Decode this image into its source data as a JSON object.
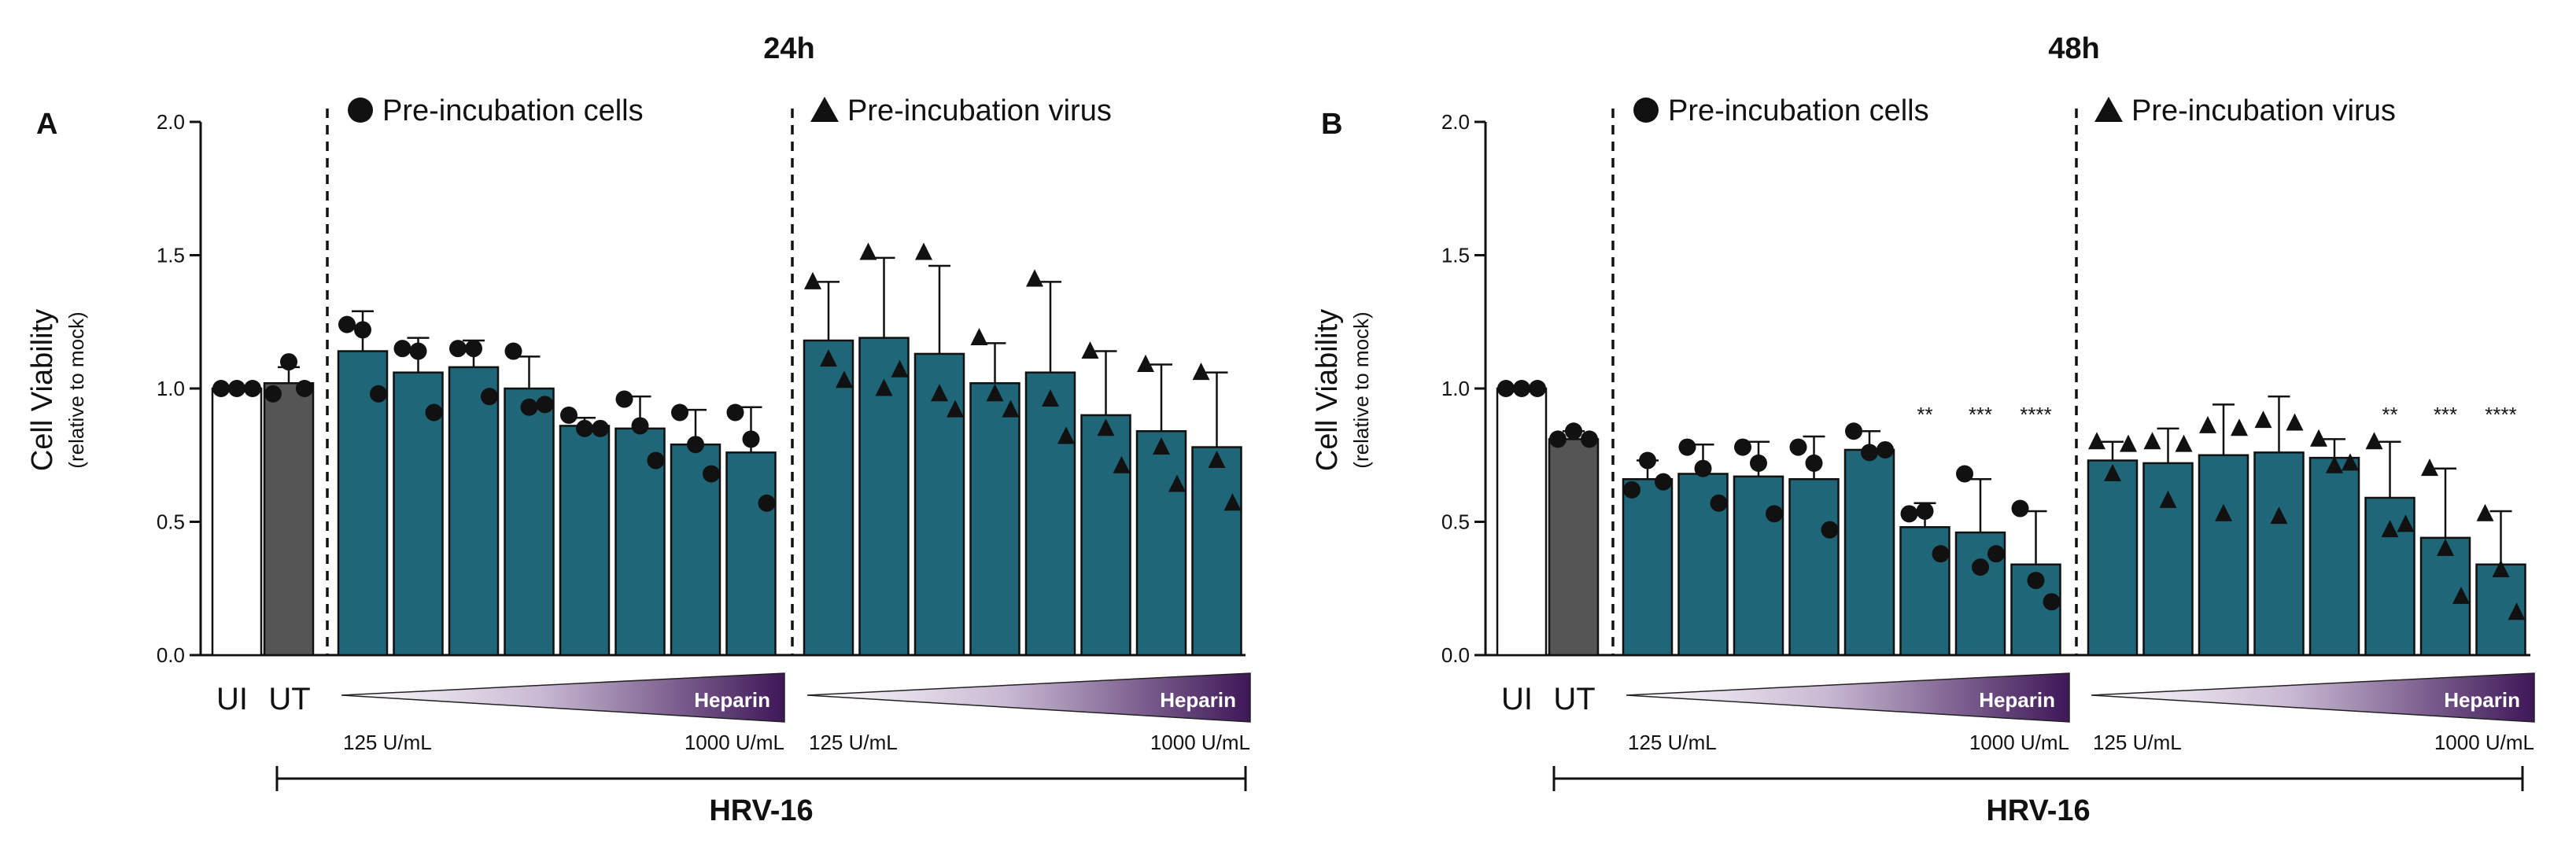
{
  "figure": {
    "colors": {
      "teal": "#1e6678",
      "ut_gray": "#555555",
      "ui_white": "#ffffff",
      "heparin_dark": "#3e1757",
      "heparin_light": "#ffffff",
      "marker": "#111111"
    },
    "shared": {
      "ylabel_main": "Cell Viability",
      "ylabel_sub": "(relative to mock)",
      "virus_label": "HRV-16",
      "gradient_label": "Heparin",
      "dose_low": "125 U/mL",
      "dose_high": "1000 U/mL",
      "control_ui": "UI",
      "control_ut": "UT",
      "group_cells_label": "Pre-incubation cells",
      "group_virus_label": "Pre-incubation virus",
      "legend_cells_icon": "circle-icon",
      "legend_virus_icon": "triangle-icon"
    }
  },
  "chart_data": [
    {
      "type": "bar",
      "panel": "A",
      "title": "24h",
      "ylabel": "Cell Viability (relative to mock)",
      "ylim": [
        0,
        2.0
      ],
      "yticks": [
        "0.0",
        "0.5",
        "1.0",
        "1.5",
        "2.0"
      ],
      "controls": [
        {
          "name": "UI",
          "value": 1.0,
          "sd": 0,
          "points": [
            1.0,
            1.0,
            1.0
          ]
        },
        {
          "name": "UT",
          "value": 1.02,
          "sd": 0.06,
          "points": [
            0.98,
            1.1,
            1.0
          ]
        }
      ],
      "groups": [
        {
          "name": "Pre-incubation cells",
          "marker": "circle",
          "bars": [
            {
              "value": 1.14,
              "sd": 0.15,
              "points": [
                1.24,
                1.22,
                0.98
              ],
              "sig": ""
            },
            {
              "value": 1.06,
              "sd": 0.13,
              "points": [
                1.15,
                1.14,
                0.91
              ],
              "sig": ""
            },
            {
              "value": 1.08,
              "sd": 0.1,
              "points": [
                1.15,
                1.15,
                0.97
              ],
              "sig": ""
            },
            {
              "value": 1.0,
              "sd": 0.12,
              "points": [
                1.14,
                0.93,
                0.94
              ],
              "sig": ""
            },
            {
              "value": 0.86,
              "sd": 0.03,
              "points": [
                0.9,
                0.85,
                0.85
              ],
              "sig": ""
            },
            {
              "value": 0.85,
              "sd": 0.12,
              "points": [
                0.96,
                0.86,
                0.73
              ],
              "sig": ""
            },
            {
              "value": 0.79,
              "sd": 0.13,
              "points": [
                0.91,
                0.79,
                0.68
              ],
              "sig": ""
            },
            {
              "value": 0.76,
              "sd": 0.17,
              "points": [
                0.91,
                0.81,
                0.57
              ],
              "sig": ""
            }
          ]
        },
        {
          "name": "Pre-incubation virus",
          "marker": "triangle",
          "bars": [
            {
              "value": 1.18,
              "sd": 0.22,
              "points": [
                1.4,
                1.11,
                1.03
              ],
              "sig": ""
            },
            {
              "value": 1.19,
              "sd": 0.3,
              "points": [
                1.51,
                1.0,
                1.07
              ],
              "sig": ""
            },
            {
              "value": 1.13,
              "sd": 0.33,
              "points": [
                1.51,
                0.98,
                0.92
              ],
              "sig": ""
            },
            {
              "value": 1.02,
              "sd": 0.15,
              "points": [
                1.19,
                0.98,
                0.92
              ],
              "sig": ""
            },
            {
              "value": 1.06,
              "sd": 0.34,
              "points": [
                1.41,
                0.96,
                0.82
              ],
              "sig": ""
            },
            {
              "value": 0.9,
              "sd": 0.24,
              "points": [
                1.14,
                0.85,
                0.71
              ],
              "sig": ""
            },
            {
              "value": 0.84,
              "sd": 0.25,
              "points": [
                1.09,
                0.78,
                0.64
              ],
              "sig": ""
            },
            {
              "value": 0.78,
              "sd": 0.28,
              "points": [
                1.06,
                0.73,
                0.57
              ],
              "sig": ""
            }
          ]
        }
      ]
    },
    {
      "type": "bar",
      "panel": "B",
      "title": "48h",
      "ylabel": "Cell Viability (relative to mock)",
      "ylim": [
        0,
        2.0
      ],
      "yticks": [
        "0.0",
        "0.5",
        "1.0",
        "1.5",
        "2.0"
      ],
      "controls": [
        {
          "name": "UI",
          "value": 1.0,
          "sd": 0,
          "points": [
            1.0,
            1.0,
            1.0
          ]
        },
        {
          "name": "UT",
          "value": 0.81,
          "sd": 0.03,
          "points": [
            0.81,
            0.84,
            0.81
          ]
        }
      ],
      "groups": [
        {
          "name": "Pre-incubation cells",
          "marker": "circle",
          "bars": [
            {
              "value": 0.66,
              "sd": 0.07,
              "points": [
                0.62,
                0.73,
                0.65
              ],
              "sig": ""
            },
            {
              "value": 0.68,
              "sd": 0.11,
              "points": [
                0.78,
                0.7,
                0.57
              ],
              "sig": ""
            },
            {
              "value": 0.67,
              "sd": 0.13,
              "points": [
                0.78,
                0.72,
                0.53
              ],
              "sig": ""
            },
            {
              "value": 0.66,
              "sd": 0.16,
              "points": [
                0.78,
                0.72,
                0.47
              ],
              "sig": ""
            },
            {
              "value": 0.77,
              "sd": 0.07,
              "points": [
                0.84,
                0.76,
                0.77
              ],
              "sig": ""
            },
            {
              "value": 0.48,
              "sd": 0.09,
              "points": [
                0.53,
                0.54,
                0.38
              ],
              "sig": "**"
            },
            {
              "value": 0.46,
              "sd": 0.2,
              "points": [
                0.68,
                0.33,
                0.38
              ],
              "sig": "***"
            },
            {
              "value": 0.34,
              "sd": 0.2,
              "points": [
                0.55,
                0.28,
                0.2
              ],
              "sig": "****"
            }
          ]
        },
        {
          "name": "Pre-incubation virus",
          "marker": "triangle",
          "bars": [
            {
              "value": 0.73,
              "sd": 0.07,
              "points": [
                0.8,
                0.68,
                0.79
              ],
              "sig": ""
            },
            {
              "value": 0.72,
              "sd": 0.13,
              "points": [
                0.8,
                0.58,
                0.79
              ],
              "sig": ""
            },
            {
              "value": 0.75,
              "sd": 0.19,
              "points": [
                0.86,
                0.53,
                0.85
              ],
              "sig": ""
            },
            {
              "value": 0.76,
              "sd": 0.21,
              "points": [
                0.88,
                0.52,
                0.87
              ],
              "sig": ""
            },
            {
              "value": 0.74,
              "sd": 0.07,
              "points": [
                0.81,
                0.71,
                0.72
              ],
              "sig": ""
            },
            {
              "value": 0.59,
              "sd": 0.21,
              "points": [
                0.8,
                0.47,
                0.49
              ],
              "sig": "**"
            },
            {
              "value": 0.44,
              "sd": 0.26,
              "points": [
                0.7,
                0.4,
                0.22
              ],
              "sig": "***"
            },
            {
              "value": 0.34,
              "sd": 0.2,
              "points": [
                0.53,
                0.32,
                0.16
              ],
              "sig": "****"
            }
          ]
        }
      ]
    }
  ]
}
